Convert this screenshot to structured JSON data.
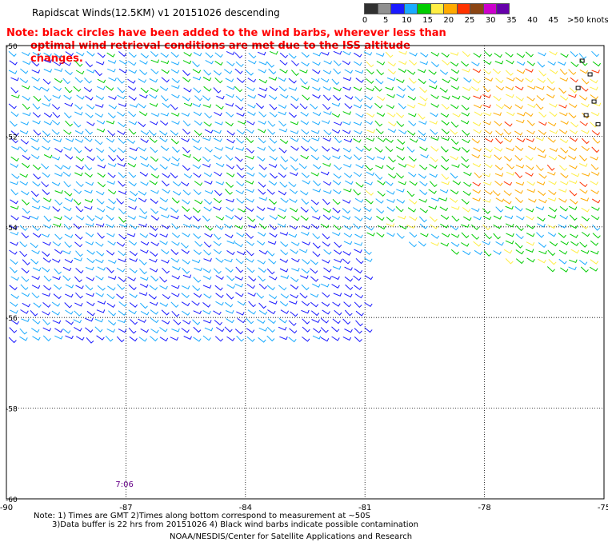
{
  "title": "Rapidscat Winds(12.5KM) v1 20151026 descending",
  "note": {
    "line1": "Note: black circles have been added to the wind barbs, wherever less than",
    "line2": "optimal wind retrieval conditions are met due to the ISS altitude changes."
  },
  "legend": {
    "labels": [
      "0",
      "5",
      "10",
      "15",
      "20",
      "25",
      "30",
      "35",
      "40",
      "45",
      ">50 knots"
    ],
    "colors": [
      "#303030",
      "#909090",
      "#1a1aff",
      "#1aaaff",
      "#00cc00",
      "#ffee44",
      "#ffaa00",
      "#ff3300",
      "#8b4513",
      "#cc00cc",
      "#6600aa"
    ]
  },
  "time_label": "7:06",
  "footer": {
    "line1": "Note: 1) Times are GMT 2)Times along bottom correspond to measurement at ~50S",
    "line2": "3)Data buffer is 22 hrs from 20151026 4) Black wind barbs indicate possible contamination",
    "line3": "NOAA/NESDIS/Center for Satellite Applications and Research"
  },
  "chart_data": {
    "type": "scatter",
    "title": "Rapidscat Winds(12.5KM) v1 20151026 descending",
    "xlabel": "",
    "ylabel": "",
    "xlim": [
      -90,
      -75
    ],
    "ylim": [
      -60,
      -50
    ],
    "x_ticks": [
      -90,
      -87,
      -84,
      -81,
      -78,
      -75
    ],
    "y_ticks": [
      -50,
      -52,
      -54,
      -56,
      -58,
      -60
    ],
    "x_tick_labels": [
      "-90",
      "-87",
      "-84",
      "-81",
      "-78",
      "-75"
    ],
    "y_tick_labels": [
      "-50",
      "-52",
      "-54",
      "-56",
      "-58",
      "-60"
    ],
    "grid": true,
    "series_description_units": "knots",
    "regions": [
      {
        "lon_range": [
          -90,
          -81
        ],
        "lat_range": [
          -50,
          -54
        ],
        "dominant_speed_kn": 17
      },
      {
        "lon_range": [
          -90,
          -81.4
        ],
        "lat_range": [
          -54,
          -56.5
        ],
        "dominant_speed_kn": 15
      },
      {
        "lon_range": [
          -81,
          -75
        ],
        "lat_range": [
          -50,
          -55
        ],
        "dominant_speed_kn": 22
      },
      {
        "lon_range": [
          -78.5,
          -75
        ],
        "lat_range": [
          -50.5,
          -53.5
        ],
        "dominant_speed_kn": 32
      }
    ]
  }
}
